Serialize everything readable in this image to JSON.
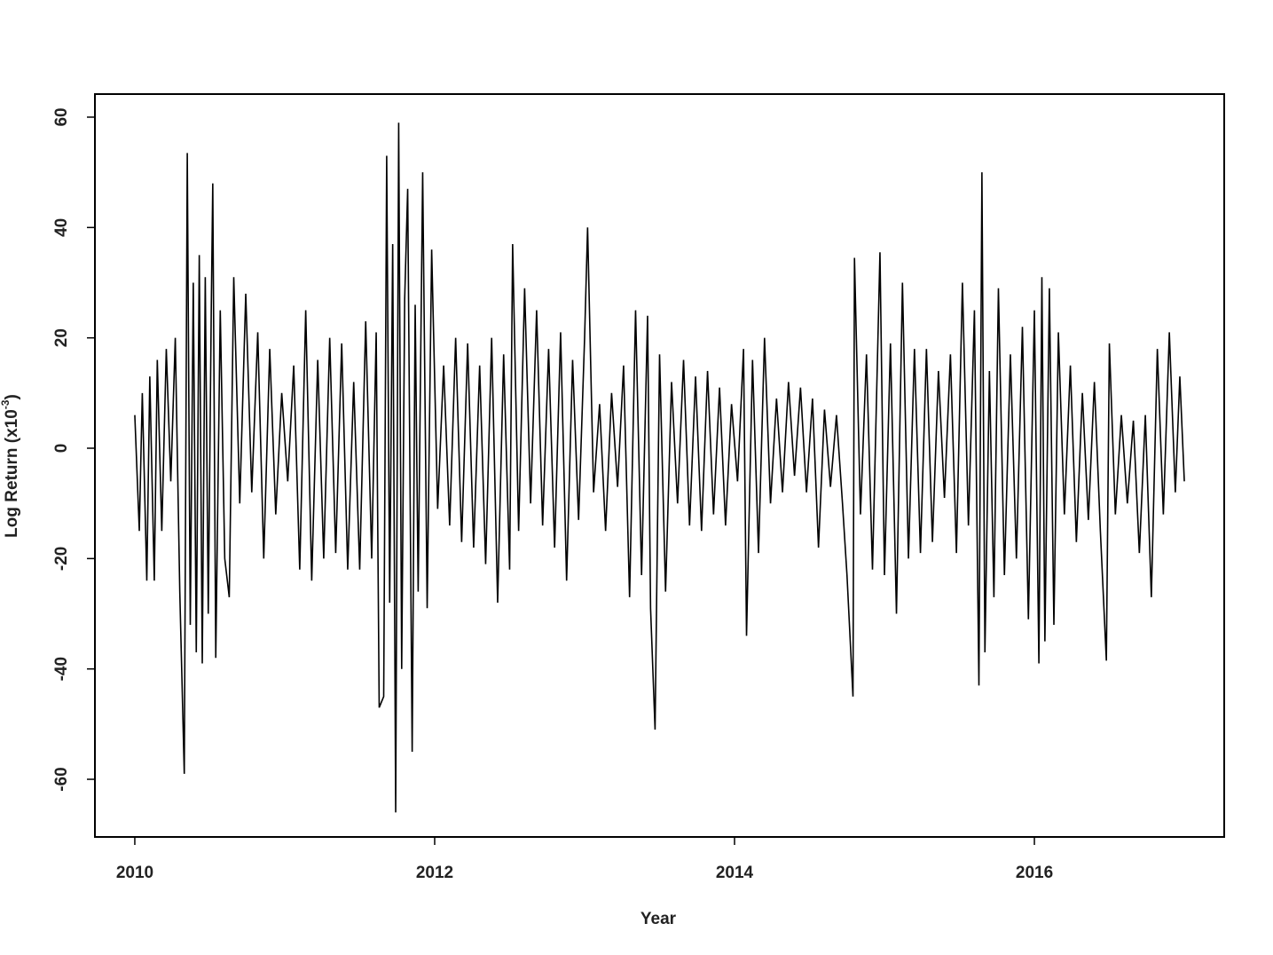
{
  "chart_data": {
    "type": "line",
    "xlabel": "Year",
    "ylabel": "Log Return (x10",
    "ylabel_sup": "-3",
    "ylabel_end": ")",
    "color": "#000000",
    "xlim": [
      2009.734,
      2017.266
    ],
    "ylim": [
      -70.45,
      64.18
    ],
    "xticks": [
      2010,
      2012,
      2014,
      2016
    ],
    "yticks": [
      -60,
      -40,
      -20,
      0,
      20,
      40,
      60
    ],
    "grid": false,
    "series": [
      {
        "name": "Log Return",
        "x": [
          2010.0,
          2010.03,
          2010.05,
          2010.08,
          2010.1,
          2010.13,
          2010.15,
          2010.18,
          2010.21,
          2010.24,
          2010.27,
          2010.3,
          2010.33,
          2010.35,
          2010.37,
          2010.39,
          2010.41,
          2010.43,
          2010.45,
          2010.47,
          2010.49,
          2010.51,
          2010.52,
          2010.54,
          2010.57,
          2010.6,
          2010.63,
          2010.66,
          2010.7,
          2010.74,
          2010.78,
          2010.82,
          2010.86,
          2010.9,
          2010.94,
          2010.98,
          2011.02,
          2011.06,
          2011.1,
          2011.14,
          2011.18,
          2011.22,
          2011.26,
          2011.3,
          2011.34,
          2011.38,
          2011.42,
          2011.46,
          2011.5,
          2011.54,
          2011.58,
          2011.61,
          2011.63,
          2011.66,
          2011.68,
          2011.7,
          2011.72,
          2011.74,
          2011.76,
          2011.78,
          2011.8,
          2011.82,
          2011.85,
          2011.87,
          2011.89,
          2011.92,
          2011.95,
          2011.98,
          2012.02,
          2012.06,
          2012.1,
          2012.14,
          2012.18,
          2012.22,
          2012.26,
          2012.3,
          2012.34,
          2012.38,
          2012.42,
          2012.46,
          2012.5,
          2012.52,
          2012.56,
          2012.6,
          2012.64,
          2012.68,
          2012.72,
          2012.76,
          2012.8,
          2012.84,
          2012.88,
          2012.92,
          2012.96,
          2013.0,
          2013.02,
          2013.06,
          2013.1,
          2013.14,
          2013.18,
          2013.22,
          2013.26,
          2013.3,
          2013.34,
          2013.38,
          2013.42,
          2013.44,
          2013.47,
          2013.5,
          2013.54,
          2013.58,
          2013.62,
          2013.66,
          2013.7,
          2013.74,
          2013.78,
          2013.82,
          2013.86,
          2013.9,
          2013.94,
          2013.98,
          2014.02,
          2014.06,
          2014.08,
          2014.12,
          2014.16,
          2014.2,
          2014.24,
          2014.28,
          2014.32,
          2014.36,
          2014.4,
          2014.44,
          2014.48,
          2014.52,
          2014.56,
          2014.6,
          2014.64,
          2014.68,
          2014.72,
          2014.75,
          2014.79,
          2014.8,
          2014.84,
          2014.88,
          2014.92,
          2014.97,
          2015.0,
          2015.04,
          2015.08,
          2015.12,
          2015.16,
          2015.2,
          2015.24,
          2015.28,
          2015.32,
          2015.36,
          2015.4,
          2015.44,
          2015.48,
          2015.52,
          2015.56,
          2015.6,
          2015.63,
          2015.65,
          2015.67,
          2015.7,
          2015.73,
          2015.76,
          2015.8,
          2015.84,
          2015.88,
          2015.92,
          2015.96,
          2016.0,
          2016.03,
          2016.05,
          2016.07,
          2016.1,
          2016.13,
          2016.16,
          2016.2,
          2016.24,
          2016.28,
          2016.32,
          2016.36,
          2016.4,
          2016.44,
          2016.48,
          2016.5,
          2016.54,
          2016.58,
          2016.62,
          2016.66,
          2016.7,
          2016.74,
          2016.78,
          2016.82,
          2016.86,
          2016.9,
          2016.94,
          2016.97,
          2017.0
        ],
        "values": [
          6,
          -15,
          10,
          -24,
          13,
          -24,
          16,
          -15,
          18,
          -6,
          20,
          -26,
          -59,
          53.5,
          -32,
          30,
          -37,
          35,
          -39,
          31,
          -30,
          25,
          48,
          -38,
          25,
          -20,
          -27,
          31,
          -10,
          28,
          -8,
          21,
          -20,
          18,
          -12,
          10,
          -6,
          15,
          -22,
          25,
          -24,
          16,
          -20,
          20,
          -19,
          19,
          -22,
          12,
          -22,
          23,
          -20,
          21,
          -47,
          -45,
          53,
          -28,
          37,
          -66,
          59,
          -40,
          27,
          47,
          -55,
          26,
          -26,
          50,
          -29,
          36,
          -11,
          15,
          -14,
          20,
          -17,
          19,
          -18,
          15,
          -21,
          20,
          -28,
          17,
          -22,
          37,
          -15,
          29,
          -10,
          25,
          -14,
          18,
          -18,
          21,
          -24,
          16,
          -13,
          20,
          40,
          -8,
          8,
          -15,
          10,
          -7,
          15,
          -27,
          25,
          -23,
          24,
          -29,
          -51,
          17,
          -26,
          12,
          -10,
          16,
          -14,
          13,
          -15,
          14,
          -12,
          11,
          -14,
          8,
          -6,
          18,
          -34,
          16,
          -19,
          20,
          -10,
          9,
          -8,
          12,
          -5,
          11,
          -8,
          9,
          -18,
          7,
          -7,
          6,
          -10,
          -23,
          -45,
          34.5,
          -12,
          17,
          -22,
          35.5,
          -23,
          19,
          -30,
          30,
          -20,
          18,
          -19,
          18,
          -17,
          14,
          -9,
          17,
          -19,
          30,
          -14,
          25,
          -43,
          50,
          -37,
          14,
          -27,
          29,
          -23,
          17,
          -20,
          22,
          -31,
          25,
          -39,
          31,
          -35,
          29,
          -32,
          21,
          -12,
          15,
          -17,
          10,
          -13,
          12,
          -15,
          -38.5,
          19,
          -12,
          6,
          -10,
          5,
          -19,
          6,
          -27,
          18,
          -12,
          21,
          -8,
          13,
          -6
        ]
      }
    ]
  }
}
